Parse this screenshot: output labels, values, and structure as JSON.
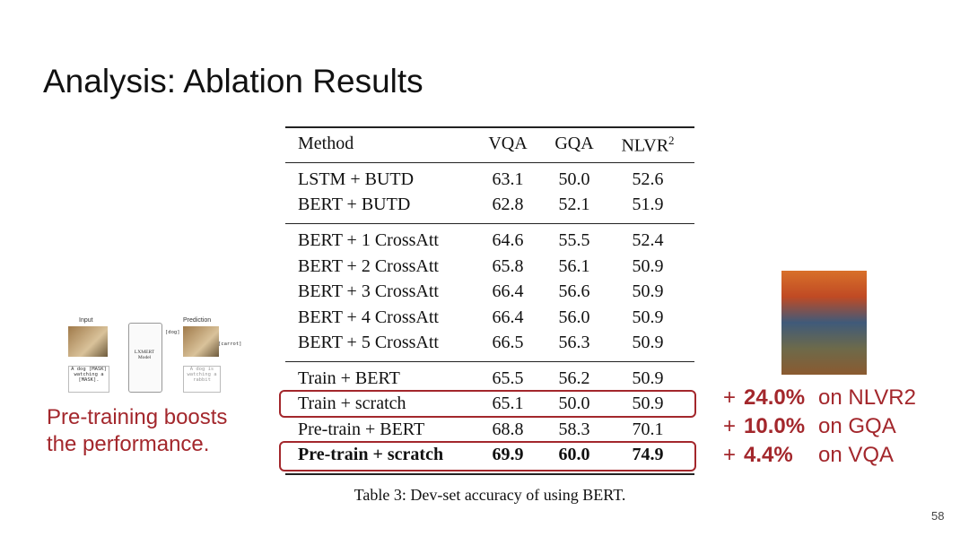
{
  "title": "Analysis: Ablation Results",
  "table": {
    "header": [
      "Method",
      "VQA",
      "GQA",
      "NLVR"
    ],
    "header_superscript": "2",
    "groups": [
      [
        [
          "LSTM + BUTD",
          "63.1",
          "50.0",
          "52.6"
        ],
        [
          "BERT + BUTD",
          "62.8",
          "52.1",
          "51.9"
        ]
      ],
      [
        [
          "BERT + 1 CrossAtt",
          "64.6",
          "55.5",
          "52.4"
        ],
        [
          "BERT + 2 CrossAtt",
          "65.8",
          "56.1",
          "50.9"
        ],
        [
          "BERT + 3 CrossAtt",
          "66.4",
          "56.6",
          "50.9"
        ],
        [
          "BERT + 4 CrossAtt",
          "66.4",
          "56.0",
          "50.9"
        ],
        [
          "BERT + 5 CrossAtt",
          "66.5",
          "56.3",
          "50.9"
        ]
      ],
      [
        [
          "Train + BERT",
          "65.5",
          "56.2",
          "50.9"
        ],
        [
          "Train + scratch",
          "65.1",
          "50.0",
          "50.9"
        ],
        [
          "Pre-train + BERT",
          "68.8",
          "58.3",
          "70.1"
        ],
        [
          "Pre-train + scratch",
          "69.9",
          "60.0",
          "74.9"
        ]
      ]
    ],
    "caption": "Table 3: Dev-set accuracy of using BERT."
  },
  "diagram": {
    "input_label": "Input",
    "prediction_label": "Prediction",
    "model_label": "LXMERT Model",
    "pred_1": "[dog]",
    "pred_2": "[carrot]",
    "input_text": "A dog [MASK] watching a [MASK].",
    "output_text": "A dog is watching a rabbit"
  },
  "left_note": [
    "Pre-training boosts",
    "the performance."
  ],
  "gains": [
    {
      "sign": "+",
      "value": "24.0%",
      "label": "on NLVR2"
    },
    {
      "sign": "+",
      "value": "10.0%",
      "label": "on GQA"
    },
    {
      "sign": "+",
      "value": "4.4%",
      "label": "on VQA"
    }
  ],
  "page_number": "58"
}
